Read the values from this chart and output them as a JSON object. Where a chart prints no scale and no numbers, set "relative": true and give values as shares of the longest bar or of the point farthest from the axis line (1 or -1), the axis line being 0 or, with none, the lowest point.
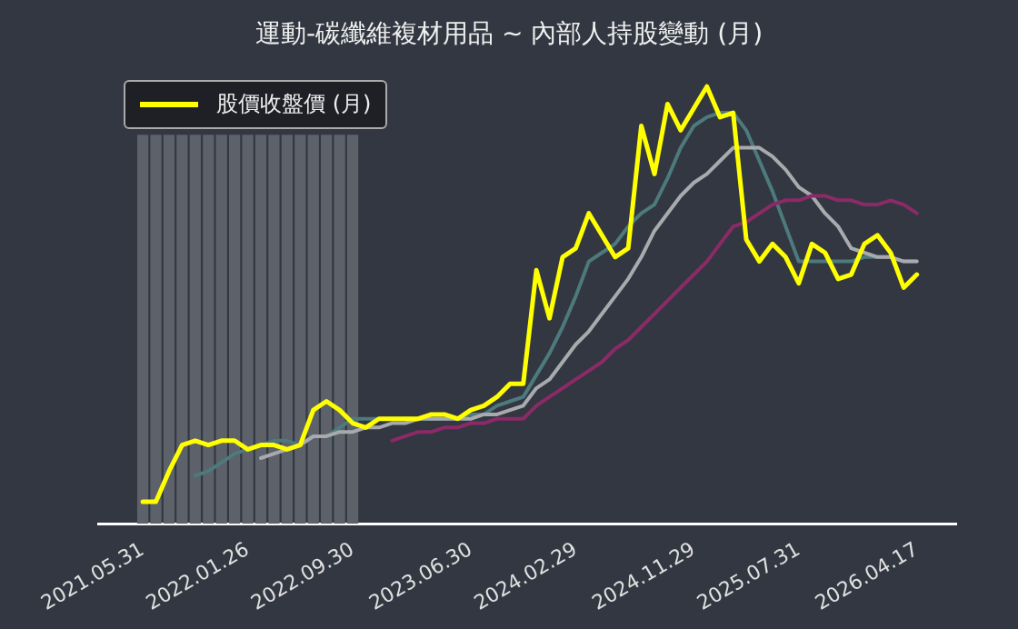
{
  "chart_data": {
    "type": "line",
    "title": "運動-碳纖維複材用品 ~ 內部人持股變動 (月)",
    "relative": true,
    "legend": "top left",
    "marker": "none",
    "grid": false,
    "categories": [
      "2021.05.31",
      null,
      null,
      null,
      null,
      null,
      null,
      null,
      "2022.01.26",
      null,
      null,
      null,
      null,
      null,
      null,
      null,
      "2022.09.30",
      null,
      null,
      null,
      null,
      null,
      null,
      null,
      null,
      "2023.06.30",
      null,
      null,
      null,
      null,
      null,
      null,
      null,
      "2024.02.29",
      null,
      null,
      null,
      null,
      null,
      null,
      null,
      null,
      "2024.11.29",
      null,
      null,
      null,
      null,
      null,
      null,
      null,
      "2025.07.31",
      null,
      null,
      null,
      null,
      null,
      null,
      null,
      null,
      "2026.04.17"
    ],
    "series": [
      {
        "type": "bar",
        "color": "#5c616a",
        "values": [
          0.89,
          0.89,
          0.89,
          0.89,
          0.89,
          0.89,
          0.89,
          0.89,
          0.89,
          0.89,
          0.89,
          0.89,
          0.89,
          0.89,
          0.89,
          0.89,
          0.89,
          null,
          null,
          null,
          null,
          null,
          null,
          null,
          null,
          null,
          null,
          null,
          null,
          null,
          null,
          null,
          null,
          null,
          null,
          null,
          null,
          null,
          null,
          null,
          null,
          null,
          null,
          null,
          null,
          null,
          null,
          null,
          null,
          null,
          null,
          null,
          null,
          null,
          null,
          null,
          null,
          null,
          null,
          null
        ]
      },
      {
        "color": "#8c2a68",
        "values": [
          null,
          null,
          null,
          null,
          null,
          null,
          null,
          null,
          null,
          null,
          null,
          null,
          null,
          null,
          null,
          null,
          null,
          null,
          null,
          0.19,
          0.2,
          0.21,
          0.21,
          0.22,
          0.22,
          0.23,
          0.23,
          0.24,
          0.24,
          0.24,
          0.27,
          0.29,
          0.31,
          0.33,
          0.35,
          0.37,
          0.4,
          0.42,
          0.45,
          0.48,
          0.51,
          0.54,
          0.57,
          0.6,
          0.64,
          0.68,
          0.69,
          0.71,
          0.73,
          0.74,
          0.74,
          0.75,
          0.75,
          0.74,
          0.74,
          0.73,
          0.73,
          0.74,
          0.73,
          0.71
        ]
      },
      {
        "color": "#a8aaae",
        "values": [
          null,
          null,
          null,
          null,
          null,
          null,
          null,
          null,
          null,
          0.15,
          0.16,
          0.17,
          0.18,
          0.2,
          0.2,
          0.21,
          0.21,
          0.22,
          0.22,
          0.23,
          0.23,
          0.24,
          0.24,
          0.24,
          0.24,
          0.24,
          0.25,
          0.25,
          0.26,
          0.27,
          0.31,
          0.33,
          0.37,
          0.41,
          0.44,
          0.48,
          0.52,
          0.56,
          0.61,
          0.67,
          0.71,
          0.75,
          0.78,
          0.8,
          0.83,
          0.86,
          0.86,
          0.86,
          0.84,
          0.81,
          0.77,
          0.75,
          0.71,
          0.68,
          0.63,
          0.62,
          0.61,
          0.61,
          0.6,
          0.6
        ]
      },
      {
        "color": "#4d7a7c",
        "values": [
          null,
          null,
          null,
          null,
          0.11,
          0.12,
          0.14,
          0.16,
          0.17,
          0.18,
          0.19,
          0.19,
          0.18,
          0.2,
          0.2,
          0.22,
          0.24,
          0.24,
          0.24,
          0.24,
          0.24,
          0.24,
          0.24,
          0.24,
          0.24,
          0.25,
          0.25,
          0.27,
          0.28,
          0.29,
          0.34,
          0.39,
          0.45,
          0.52,
          0.6,
          0.62,
          0.64,
          0.68,
          0.71,
          0.73,
          0.79,
          0.86,
          0.91,
          0.93,
          0.94,
          0.94,
          0.9,
          0.83,
          0.76,
          0.68,
          0.6,
          0.6,
          0.6,
          0.6,
          0.6,
          0.61,
          0.61,
          0.61,
          0.6,
          0.6
        ]
      },
      {
        "name": "股價收盤價 (月)",
        "color": "#ffff00",
        "values": [
          0.05,
          0.05,
          0.12,
          0.18,
          0.19,
          0.18,
          0.19,
          0.19,
          0.17,
          0.18,
          0.18,
          0.17,
          0.18,
          0.26,
          0.28,
          0.26,
          0.23,
          0.22,
          0.24,
          0.24,
          0.24,
          0.24,
          0.25,
          0.25,
          0.24,
          0.26,
          0.27,
          0.29,
          0.32,
          0.32,
          0.58,
          0.47,
          0.61,
          0.63,
          0.71,
          0.66,
          0.61,
          0.63,
          0.91,
          0.8,
          0.96,
          0.9,
          0.95,
          1,
          0.93,
          0.94,
          0.65,
          0.6,
          0.64,
          0.61,
          0.55,
          0.64,
          0.62,
          0.56,
          0.57,
          0.64,
          0.66,
          0.62,
          0.54,
          0.57
        ]
      }
    ]
  }
}
